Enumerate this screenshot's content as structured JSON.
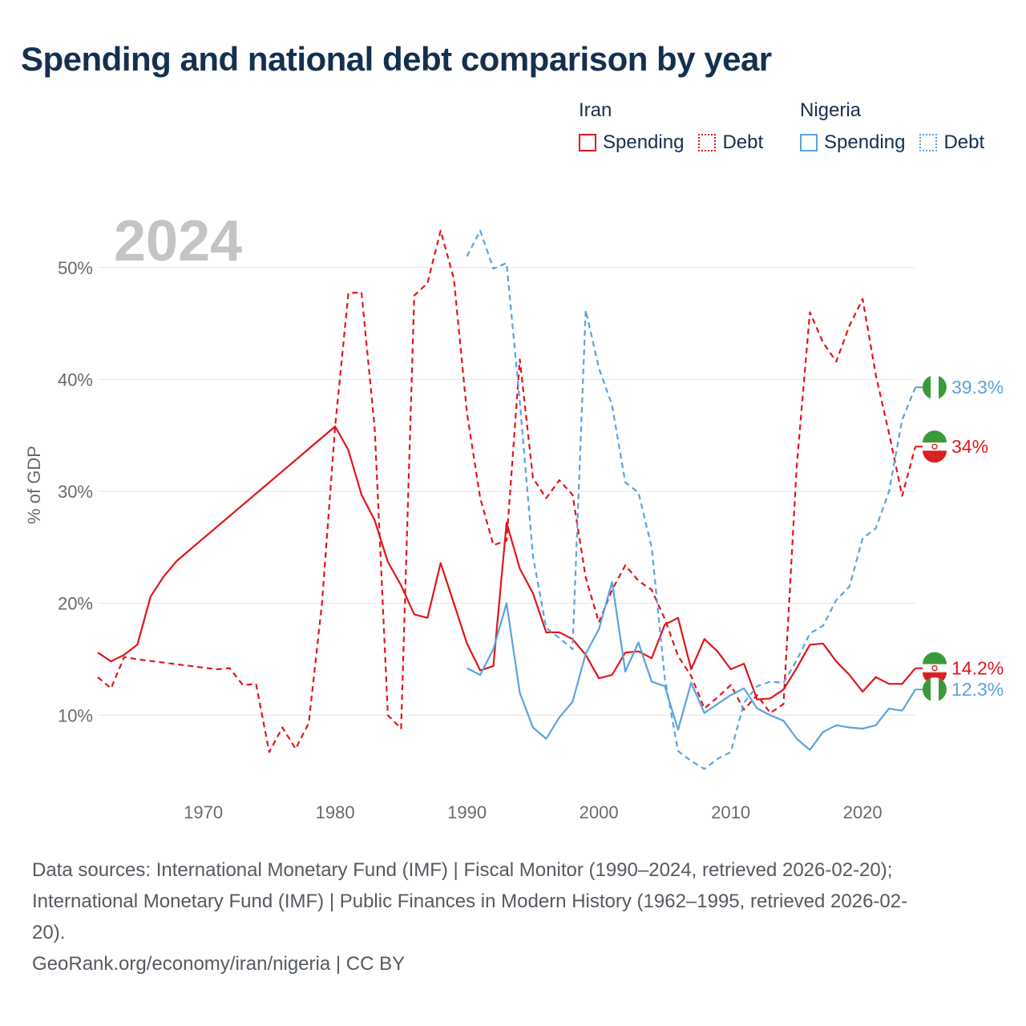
{
  "title": "Spending and national debt comparison by year",
  "legend": {
    "groups": [
      {
        "name": "Iran",
        "color": "#e3141b",
        "items": [
          "Spending",
          "Debt"
        ]
      },
      {
        "name": "Nigeria",
        "color": "#5aa3e0",
        "items": [
          "Spending",
          "Debt"
        ]
      }
    ]
  },
  "sources": {
    "line1": "Data sources: International Monetary Fund (IMF) | Fiscal Monitor (1990–2024, retrieved 2026-02-20);",
    "line2": "International Monetary Fund (IMF) | Public Finances in Modern History (1962–1995, retrieved 2026-02-",
    "line3": "20).",
    "line4": "GeoRank.org/economy/iran/nigeria | CC BY"
  },
  "chart_data": {
    "type": "line",
    "watermark_year": "2024",
    "ylabel": "% of GDP",
    "xlabel": "",
    "xlim": [
      1962,
      2024
    ],
    "ylim": [
      3,
      56
    ],
    "x_ticks": [
      1970,
      1980,
      1990,
      2000,
      2010,
      2020
    ],
    "y_ticks": [
      10,
      20,
      30,
      40,
      50
    ],
    "y_tick_suffix": "%",
    "series": [
      {
        "name": "Iran Spending",
        "country": "Iran",
        "metric": "Spending",
        "style": "solid",
        "color": "#e3141b",
        "end_label": "14.2%",
        "points": [
          [
            1962,
            15.6
          ],
          [
            1963,
            14.8
          ],
          [
            1964,
            15.4
          ],
          [
            1965,
            16.3
          ],
          [
            1966,
            20.6
          ],
          [
            1967,
            22.4
          ],
          [
            1968,
            23.8
          ],
          [
            1980,
            35.8
          ],
          [
            1981,
            33.7
          ],
          [
            1982,
            29.7
          ],
          [
            1983,
            27.4
          ],
          [
            1984,
            23.7
          ],
          [
            1985,
            21.6
          ],
          [
            1986,
            19.0
          ],
          [
            1987,
            18.7
          ],
          [
            1988,
            23.6
          ],
          [
            1989,
            20.0
          ],
          [
            1990,
            16.4
          ],
          [
            1991,
            14.0
          ],
          [
            1992,
            14.4
          ],
          [
            1993,
            27.2
          ],
          [
            1994,
            23.1
          ],
          [
            1995,
            20.9
          ],
          [
            1996,
            17.4
          ],
          [
            1997,
            17.4
          ],
          [
            1998,
            16.8
          ],
          [
            1999,
            15.4
          ],
          [
            2000,
            13.3
          ],
          [
            2001,
            13.6
          ],
          [
            2002,
            15.6
          ],
          [
            2003,
            15.7
          ],
          [
            2004,
            15.1
          ],
          [
            2005,
            18.1
          ],
          [
            2006,
            18.7
          ],
          [
            2007,
            14.1
          ],
          [
            2008,
            16.8
          ],
          [
            2009,
            15.7
          ],
          [
            2010,
            14.1
          ],
          [
            2011,
            14.6
          ],
          [
            2012,
            11.4
          ],
          [
            2013,
            11.5
          ],
          [
            2014,
            12.3
          ],
          [
            2015,
            14.2
          ],
          [
            2016,
            16.3
          ],
          [
            2017,
            16.4
          ],
          [
            2018,
            14.8
          ],
          [
            2019,
            13.6
          ],
          [
            2020,
            12.1
          ],
          [
            2021,
            13.4
          ],
          [
            2022,
            12.8
          ],
          [
            2023,
            12.8
          ],
          [
            2024,
            14.2
          ]
        ]
      },
      {
        "name": "Iran Debt",
        "country": "Iran",
        "metric": "Debt",
        "style": "dashed",
        "color": "#e3141b",
        "end_label": "34%",
        "points": [
          [
            1962,
            13.4
          ],
          [
            1963,
            12.4
          ],
          [
            1964,
            15.2
          ],
          [
            1965,
            15.0
          ],
          [
            1971,
            14.1
          ],
          [
            1972,
            14.2
          ],
          [
            1973,
            12.7
          ],
          [
            1974,
            12.8
          ],
          [
            1975,
            6.7
          ],
          [
            1976,
            8.9
          ],
          [
            1977,
            7.0
          ],
          [
            1978,
            9.3
          ],
          [
            1979,
            20.0
          ],
          [
            1980,
            35.8
          ],
          [
            1981,
            47.7
          ],
          [
            1982,
            47.8
          ],
          [
            1983,
            35.6
          ],
          [
            1984,
            10.0
          ],
          [
            1985,
            8.8
          ],
          [
            1986,
            47.5
          ],
          [
            1987,
            48.6
          ],
          [
            1988,
            53.3
          ],
          [
            1989,
            49.0
          ],
          [
            1990,
            37.0
          ],
          [
            1991,
            29.4
          ],
          [
            1992,
            25.2
          ],
          [
            1993,
            25.6
          ],
          [
            1994,
            41.8
          ],
          [
            1995,
            31.2
          ],
          [
            1996,
            29.4
          ],
          [
            1997,
            31.0
          ],
          [
            1998,
            29.7
          ],
          [
            1999,
            22.3
          ],
          [
            2000,
            18.3
          ],
          [
            2001,
            21.2
          ],
          [
            2002,
            23.4
          ],
          [
            2003,
            22.0
          ],
          [
            2004,
            21.2
          ],
          [
            2005,
            18.6
          ],
          [
            2006,
            15.3
          ],
          [
            2007,
            13.5
          ],
          [
            2008,
            10.6
          ],
          [
            2009,
            11.6
          ],
          [
            2010,
            12.7
          ],
          [
            2011,
            10.5
          ],
          [
            2012,
            11.8
          ],
          [
            2013,
            10.2
          ],
          [
            2014,
            11.0
          ],
          [
            2015,
            32.2
          ],
          [
            2016,
            46.0
          ],
          [
            2017,
            43.3
          ],
          [
            2018,
            41.6
          ],
          [
            2019,
            44.8
          ],
          [
            2020,
            47.2
          ],
          [
            2021,
            40.4
          ],
          [
            2022,
            35.2
          ],
          [
            2023,
            29.6
          ],
          [
            2024,
            34.0
          ]
        ]
      },
      {
        "name": "Nigeria Spending",
        "country": "Nigeria",
        "metric": "Spending",
        "style": "solid",
        "color": "#5aa3e0",
        "end_label": "12.3%",
        "points": [
          [
            1990,
            14.2
          ],
          [
            1991,
            13.6
          ],
          [
            1992,
            15.9
          ],
          [
            1993,
            20.0
          ],
          [
            1994,
            12.0
          ],
          [
            1995,
            8.9
          ],
          [
            1996,
            7.9
          ],
          [
            1997,
            9.8
          ],
          [
            1998,
            11.2
          ],
          [
            1999,
            15.5
          ],
          [
            2000,
            17.7
          ],
          [
            2001,
            21.9
          ],
          [
            2002,
            13.9
          ],
          [
            2003,
            16.5
          ],
          [
            2004,
            13.0
          ],
          [
            2005,
            12.6
          ],
          [
            2006,
            8.7
          ],
          [
            2007,
            12.9
          ],
          [
            2008,
            10.2
          ],
          [
            2009,
            11.0
          ],
          [
            2010,
            11.8
          ],
          [
            2011,
            12.4
          ],
          [
            2012,
            10.6
          ],
          [
            2013,
            10.0
          ],
          [
            2014,
            9.5
          ],
          [
            2015,
            7.9
          ],
          [
            2016,
            6.9
          ],
          [
            2017,
            8.5
          ],
          [
            2018,
            9.1
          ],
          [
            2019,
            8.9
          ],
          [
            2020,
            8.8
          ],
          [
            2021,
            9.1
          ],
          [
            2022,
            10.6
          ],
          [
            2023,
            10.4
          ],
          [
            2024,
            12.3
          ]
        ]
      },
      {
        "name": "Nigeria Debt",
        "country": "Nigeria",
        "metric": "Debt",
        "style": "dashed",
        "color": "#5aa3e0",
        "end_label": "39.3%",
        "points": [
          [
            1990,
            51.0
          ],
          [
            1991,
            53.3
          ],
          [
            1992,
            49.9
          ],
          [
            1993,
            50.4
          ],
          [
            1994,
            38.0
          ],
          [
            1995,
            24.2
          ],
          [
            1996,
            17.8
          ],
          [
            1997,
            16.9
          ],
          [
            1998,
            15.9
          ],
          [
            1999,
            46.2
          ],
          [
            2000,
            41.0
          ],
          [
            2001,
            37.7
          ],
          [
            2002,
            30.8
          ],
          [
            2003,
            29.9
          ],
          [
            2004,
            25.0
          ],
          [
            2005,
            13.3
          ],
          [
            2006,
            6.8
          ],
          [
            2007,
            5.9
          ],
          [
            2008,
            5.2
          ],
          [
            2009,
            6.1
          ],
          [
            2010,
            6.7
          ],
          [
            2011,
            11.1
          ],
          [
            2012,
            12.6
          ],
          [
            2013,
            13.0
          ],
          [
            2014,
            12.9
          ],
          [
            2015,
            14.9
          ],
          [
            2016,
            17.3
          ],
          [
            2017,
            18.0
          ],
          [
            2018,
            20.3
          ],
          [
            2019,
            21.5
          ],
          [
            2020,
            25.8
          ],
          [
            2021,
            26.7
          ],
          [
            2022,
            30.0
          ],
          [
            2023,
            36.4
          ],
          [
            2024,
            39.3
          ]
        ]
      }
    ]
  }
}
